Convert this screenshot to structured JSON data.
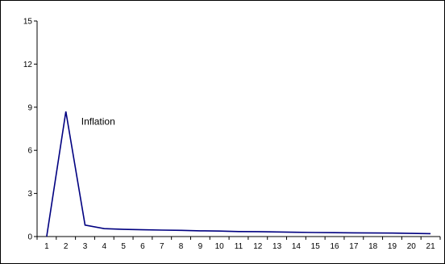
{
  "chart_data": {
    "type": "line",
    "title": "",
    "xlabel": "",
    "ylabel": "",
    "x": [
      1,
      2,
      3,
      4,
      5,
      6,
      7,
      8,
      9,
      10,
      11,
      12,
      13,
      14,
      15,
      16,
      17,
      18,
      19,
      20,
      21
    ],
    "series": [
      {
        "values": [
          0,
          8.7,
          0.8,
          0.55,
          0.5,
          0.47,
          0.45,
          0.43,
          0.4,
          0.38,
          0.35,
          0.34,
          0.32,
          0.3,
          0.28,
          0.27,
          0.26,
          0.25,
          0.24,
          0.22,
          0.2
        ],
        "color": "#000080"
      }
    ],
    "ylim": [
      0,
      15
    ],
    "xlim": [
      1,
      21
    ],
    "yticks": [
      "0",
      "3",
      "6",
      "9",
      "12",
      "15"
    ],
    "xticks": [
      "1",
      "2",
      "3",
      "4",
      "5",
      "6",
      "7",
      "8",
      "9",
      "10",
      "11",
      "12",
      "13",
      "14",
      "15",
      "16",
      "17",
      "18",
      "19",
      "20",
      "21"
    ],
    "annotations": [
      {
        "text": "Inflation",
        "x": 2.8,
        "y": 8.0
      }
    ],
    "grid": false,
    "legend": "none"
  }
}
